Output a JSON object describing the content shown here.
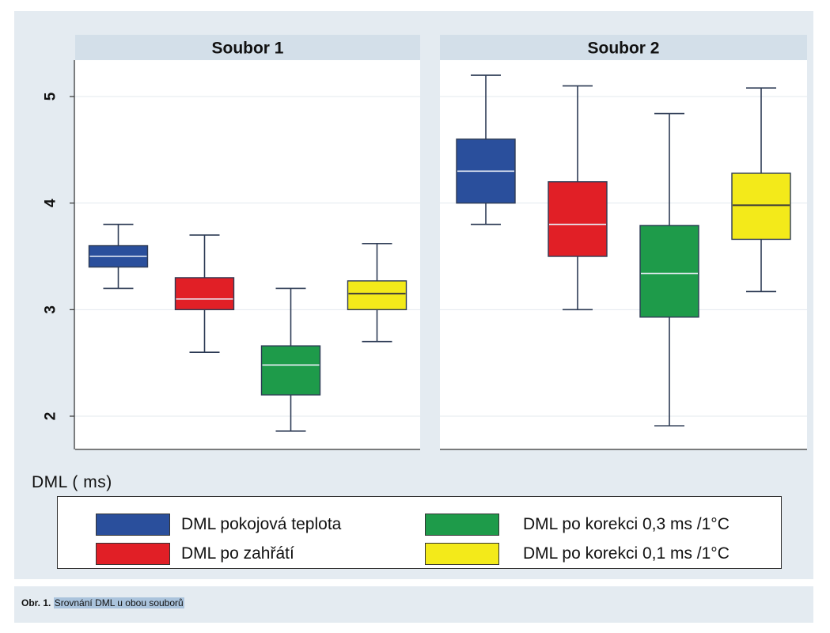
{
  "chart_data": {
    "type": "box",
    "ylabel": "DML ( ms)",
    "ylim": [
      1.75,
      5.35
    ],
    "yticks": [
      2,
      3,
      4,
      5
    ],
    "grid": true,
    "legend_position": "bottom",
    "series": [
      {
        "name": "DML pokojová teplota",
        "color": "#2a4f9c"
      },
      {
        "name": "DML po zahřátí",
        "color": "#e11f26"
      },
      {
        "name": "DML po korekci 0,3 ms /1°C",
        "color": "#1e9b4a"
      },
      {
        "name": "DML po korekci 0,1 ms /1°C",
        "color": "#f3ea1a"
      }
    ],
    "panels": [
      {
        "title": "Soubor 1",
        "boxes": [
          {
            "series": 0,
            "min": 3.2,
            "q1": 3.4,
            "median": 3.5,
            "q3": 3.6,
            "max": 3.8
          },
          {
            "series": 1,
            "min": 2.6,
            "q1": 3.0,
            "median": 3.1,
            "q3": 3.3,
            "max": 3.7
          },
          {
            "series": 2,
            "min": 1.86,
            "q1": 2.2,
            "median": 2.48,
            "q3": 2.66,
            "max": 3.2
          },
          {
            "series": 3,
            "min": 2.7,
            "q1": 3.0,
            "median": 3.15,
            "q3": 3.27,
            "max": 3.62
          }
        ]
      },
      {
        "title": "Soubor 2",
        "boxes": [
          {
            "series": 0,
            "min": 3.8,
            "q1": 4.0,
            "median": 4.3,
            "q3": 4.6,
            "max": 5.2
          },
          {
            "series": 1,
            "min": 3.0,
            "q1": 3.5,
            "median": 3.8,
            "q3": 4.2,
            "max": 5.1
          },
          {
            "series": 2,
            "min": 1.91,
            "q1": 2.93,
            "median": 3.34,
            "q3": 3.79,
            "max": 4.84
          },
          {
            "series": 3,
            "min": 3.17,
            "q1": 3.66,
            "median": 3.98,
            "q3": 4.28,
            "max": 5.08
          }
        ]
      }
    ]
  },
  "legend": {
    "items": [
      {
        "label": "DML pokojová teplota",
        "color": "#2a4f9c"
      },
      {
        "label": "DML po zahřátí",
        "color": "#e11f26"
      },
      {
        "label": "DML po korekci 0,3 ms /1°C",
        "color": "#1e9b4a"
      },
      {
        "label": "DML po korekci 0,1 ms /1°C",
        "color": "#f3ea1a"
      }
    ]
  },
  "caption": {
    "prefix": "Obr. 1.",
    "text": "Srovnání DML u obou souborů"
  }
}
